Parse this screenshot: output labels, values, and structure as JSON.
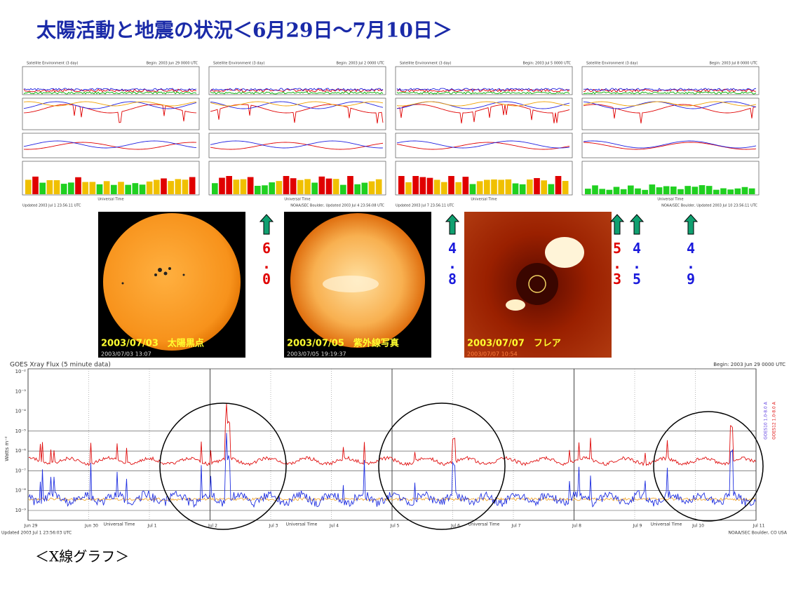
{
  "title": "太陽活動と地震の状況＜6月29日～7月10日＞",
  "satellite_panels": [
    {
      "header": "Satellite Environment (3 day)",
      "begin": "Begin: 2003 Jun 29 0000 UTC",
      "updated": "Updated 2003 Jul 1 23:56:11 UTC",
      "axis_label": "Universal Time"
    },
    {
      "header": "Satellite Environment (3 day)",
      "begin": "Begin: 2003 Jul 2 0000 UTC",
      "updated": "NOAA/SEC Boulder, Updated 2003 Jul 4 23:56:08 UTC",
      "axis_label": "Universal Time"
    },
    {
      "header": "Satellite Environment (3 day)",
      "begin": "Begin: 2003 Jul 5 0000 UTC",
      "updated": "Updated 2003 Jul 7 23:56:11 UTC",
      "axis_label": "Universal Time"
    },
    {
      "header": "Satellite Environment (3 day)",
      "begin": "Begin: 2003 Jul 8 0000 UTC",
      "updated": "NOAA/SEC Boulder, Updated 2003 Jul 10 23:56:11 UTC",
      "axis_label": "Universal Time"
    }
  ],
  "photos": [
    {
      "caption": "2003/07/03　太陽黒点",
      "timestamp": "2003/07/03 13:07"
    },
    {
      "caption": "2003/07/05　紫外線写真",
      "timestamp": "2003/07/05 19:19:37"
    },
    {
      "caption": "2003/07/07　フレア",
      "timestamp": "2003/07/07 10:54"
    }
  ],
  "quakes": [
    {
      "magnitude": "6.0",
      "color": "#e00000"
    },
    {
      "magnitude": "4.8",
      "color": "#1a1adc"
    },
    {
      "magnitude": "5.3",
      "color": "#e00000"
    },
    {
      "magnitude": "4.5",
      "color": "#1a1adc"
    },
    {
      "magnitude": "4.9",
      "color": "#1a1adc"
    }
  ],
  "xray": {
    "header": "GOES Xray Flux (5 minute data)",
    "begin": "Begin: 2003 Jun 29 0000 UTC",
    "ylabel": "Watts m⁻²",
    "yticks": [
      "10⁻²",
      "10⁻³",
      "10⁻⁴",
      "10⁻⁵",
      "10⁻⁶",
      "10⁻⁷",
      "10⁻⁸",
      "10⁻⁹"
    ],
    "xticks": [
      "Jun 29",
      "Jun 30",
      "Jul 1",
      "Jul 2",
      "Jul 3",
      "Jul 4",
      "Jul 5",
      "Jul 6",
      "Jul 7",
      "Jul 8",
      "Jul 9",
      "Jul 10",
      "Jul 11"
    ],
    "xlabel": "Universal Time",
    "legend": [
      "GOES10 1.0-8.0 A",
      "GOES12 1.0-8.0 A"
    ],
    "footer_left": "Updated 2003 Jul 1 23:56:03 UTC",
    "footer_right": "NOAA/SEC Boulder, CO USA"
  },
  "footer": "＜X線グラフ＞"
}
